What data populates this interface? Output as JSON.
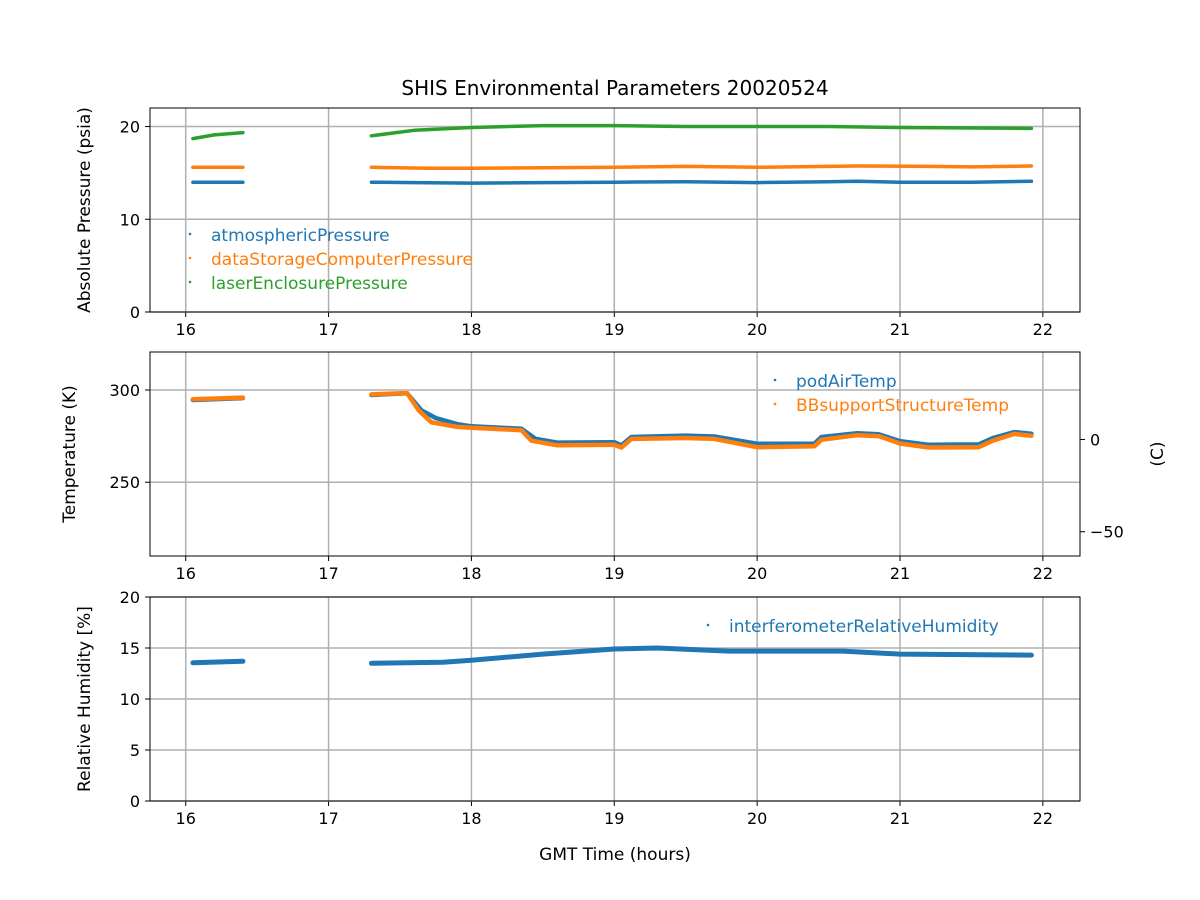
{
  "chart_data": [
    {
      "type": "scatter",
      "title": "SHIS Environmental Parameters 20020524",
      "xlabel": "",
      "ylabel": "Absolute Pressure (psia)",
      "xlim": [
        15.75,
        22.26
      ],
      "ylim": [
        0,
        22
      ],
      "xticks": [
        16,
        17,
        18,
        19,
        20,
        21,
        22
      ],
      "yticks": [
        0,
        10,
        20
      ],
      "grid": true,
      "legend_placement": "lower-left",
      "series": [
        {
          "name": "atmosphericPressure",
          "color": "#1f77b4",
          "segments": [
            [
              [
                16.05,
                14.0
              ],
              [
                16.4,
                14.0
              ]
            ],
            [
              [
                17.3,
                14.0
              ],
              [
                17.6,
                13.95
              ],
              [
                18.0,
                13.9
              ],
              [
                18.5,
                13.95
              ],
              [
                19.0,
                14.0
              ],
              [
                19.5,
                14.05
              ],
              [
                19.8,
                14.0
              ],
              [
                20.0,
                13.95
              ],
              [
                20.5,
                14.05
              ],
              [
                20.7,
                14.1
              ],
              [
                21.0,
                14.0
              ],
              [
                21.5,
                14.0
              ],
              [
                21.92,
                14.1
              ]
            ]
          ]
        },
        {
          "name": "dataStorageComputerPressure",
          "color": "#ff7f0e",
          "segments": [
            [
              [
                16.05,
                15.6
              ],
              [
                16.4,
                15.6
              ]
            ],
            [
              [
                17.3,
                15.6
              ],
              [
                17.7,
                15.5
              ],
              [
                18.0,
                15.5
              ],
              [
                18.5,
                15.55
              ],
              [
                19.0,
                15.6
              ],
              [
                19.5,
                15.7
              ],
              [
                20.0,
                15.6
              ],
              [
                20.5,
                15.7
              ],
              [
                20.7,
                15.75
              ],
              [
                21.2,
                15.7
              ],
              [
                21.5,
                15.65
              ],
              [
                21.92,
                15.75
              ]
            ]
          ]
        },
        {
          "name": "laserEnclosurePressure",
          "color": "#2ca02c",
          "segments": [
            [
              [
                16.05,
                18.7
              ],
              [
                16.2,
                19.1
              ],
              [
                16.4,
                19.35
              ]
            ],
            [
              [
                17.3,
                19.0
              ],
              [
                17.6,
                19.6
              ],
              [
                18.0,
                19.9
              ],
              [
                18.5,
                20.1
              ],
              [
                19.0,
                20.1
              ],
              [
                19.5,
                20.0
              ],
              [
                20.5,
                20.0
              ],
              [
                21.0,
                19.9
              ],
              [
                21.92,
                19.8
              ]
            ]
          ]
        }
      ]
    },
    {
      "type": "scatter",
      "title": "",
      "xlabel": "",
      "ylabel": "Temperature (K)",
      "ylabel_right": "(C)",
      "xlim": [
        15.75,
        22.26
      ],
      "ylim": [
        210,
        320.6
      ],
      "xticks": [
        16,
        17,
        18,
        19,
        20,
        21,
        22
      ],
      "yticks": [
        250,
        300
      ],
      "yticks_right": [
        0,
        -50
      ],
      "right_offset_K": 273.15,
      "grid": true,
      "legend_placement": "upper-right",
      "series": [
        {
          "name": "podAirTemp",
          "color": "#1f77b4",
          "segments": [
            [
              [
                16.05,
                294.6
              ],
              [
                16.4,
                295.6
              ]
            ],
            [
              [
                17.3,
                297.3
              ],
              [
                17.55,
                298.2
              ],
              [
                17.65,
                289
              ],
              [
                17.75,
                284.8
              ],
              [
                17.9,
                281.5
              ],
              [
                18.0,
                280.3
              ],
              [
                18.35,
                279.0
              ],
              [
                18.45,
                273.5
              ],
              [
                18.6,
                271.5
              ],
              [
                19.0,
                271.7
              ],
              [
                19.05,
                270.0
              ],
              [
                19.12,
                274.5
              ],
              [
                19.5,
                275.3
              ],
              [
                19.7,
                274.8
              ],
              [
                20.0,
                270.9
              ],
              [
                20.4,
                270.9
              ],
              [
                20.45,
                274.5
              ],
              [
                20.7,
                276.6
              ],
              [
                20.85,
                276.0
              ],
              [
                21.0,
                272.3
              ],
              [
                21.2,
                270.3
              ],
              [
                21.55,
                270.5
              ],
              [
                21.65,
                273.9
              ],
              [
                21.8,
                277.2
              ],
              [
                21.92,
                276.3
              ]
            ]
          ]
        },
        {
          "name": "BBsupportStructureTemp",
          "color": "#ff7f0e",
          "segments": [
            [
              [
                16.05,
                295.0
              ],
              [
                16.4,
                295.9
              ]
            ],
            [
              [
                17.3,
                297.6
              ],
              [
                17.55,
                298.3
              ],
              [
                17.63,
                289
              ],
              [
                17.72,
                282.5
              ],
              [
                17.9,
                280.0
              ],
              [
                18.0,
                279.5
              ],
              [
                18.35,
                278.2
              ],
              [
                18.42,
                272.5
              ],
              [
                18.6,
                270.0
              ],
              [
                19.0,
                270.3
              ],
              [
                19.05,
                268.8
              ],
              [
                19.12,
                273.5
              ],
              [
                19.5,
                274.0
              ],
              [
                19.7,
                273.5
              ],
              [
                20.0,
                269.0
              ],
              [
                20.4,
                269.5
              ],
              [
                20.45,
                273.0
              ],
              [
                20.7,
                275.5
              ],
              [
                20.85,
                275.0
              ],
              [
                21.0,
                271.0
              ],
              [
                21.2,
                268.8
              ],
              [
                21.55,
                269.0
              ],
              [
                21.65,
                272.5
              ],
              [
                21.8,
                276.2
              ],
              [
                21.92,
                275.2
              ]
            ]
          ]
        }
      ]
    },
    {
      "type": "scatter",
      "title": "",
      "xlabel": "GMT Time (hours)",
      "ylabel": "Relative Humidity [%]",
      "xlim": [
        15.75,
        22.26
      ],
      "ylim": [
        0,
        20
      ],
      "xticks": [
        16,
        17,
        18,
        19,
        20,
        21,
        22
      ],
      "yticks": [
        0,
        5,
        10,
        15,
        20
      ],
      "grid": true,
      "legend_placement": "upper-right",
      "series": [
        {
          "name": "interferometerRelativeHumidity",
          "color": "#1f77b4",
          "segments": [
            [
              [
                16.05,
                13.55
              ],
              [
                16.4,
                13.7
              ]
            ],
            [
              [
                17.3,
                13.5
              ],
              [
                17.8,
                13.6
              ],
              [
                18.0,
                13.8
              ],
              [
                18.5,
                14.4
              ],
              [
                19.0,
                14.9
              ],
              [
                19.3,
                15.0
              ],
              [
                19.8,
                14.7
              ],
              [
                20.6,
                14.7
              ],
              [
                21.0,
                14.4
              ],
              [
                21.92,
                14.3
              ]
            ]
          ]
        }
      ]
    }
  ]
}
